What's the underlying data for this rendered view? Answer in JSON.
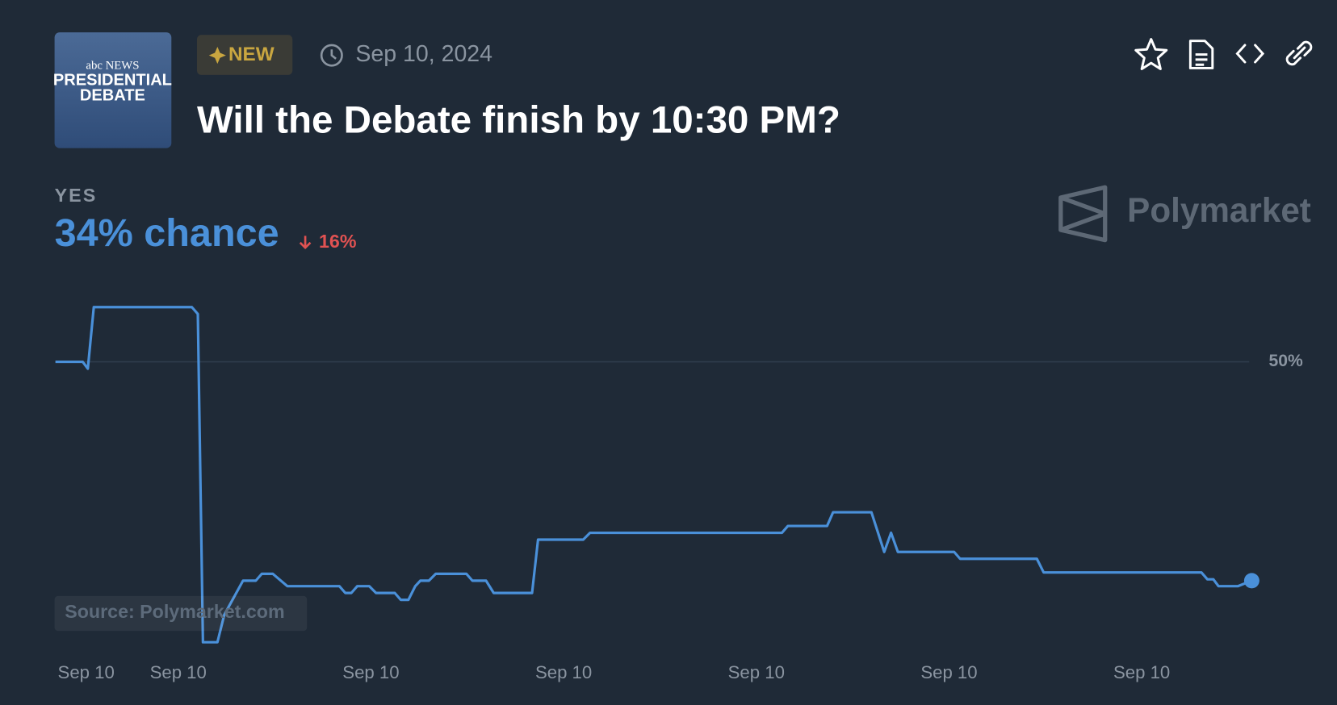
{
  "header": {
    "thumbnail": {
      "network": "abc NEWS",
      "line1": "PRESIDENTIAL",
      "line2": "DEBATE"
    },
    "badge": "NEW",
    "date": "Sep 10, 2024",
    "title": "Will the Debate finish by 10:30 PM?",
    "outcome": "YES",
    "chance": "34% chance",
    "change": "16%",
    "brand": "Polymarket"
  },
  "chart_data": {
    "type": "line",
    "color": "#4a90d9",
    "grid": true,
    "source": "Source: Polymarket.com",
    "x": [
      0,
      3.2,
      3.8,
      4.5,
      16,
      16.7,
      17.3,
      19,
      19.8,
      22,
      23.5,
      24.2,
      25.5,
      27.2,
      33.3,
      34,
      34.7,
      35.4,
      36.8,
      37.6,
      39.8,
      40.5,
      41.4,
      42.2,
      42.8,
      43.8,
      44.6,
      48.2,
      48.9,
      50.5,
      51.4,
      55.9,
      56.6,
      61.9,
      62.7,
      85.2,
      85.9,
      90.5,
      91.2,
      95.7,
      97.2,
      98,
      98.8,
      105.4,
      106.1,
      115.1,
      115.9,
      134.4,
      135.1,
      135.8,
      136.4,
      138.7,
      140.3
    ],
    "values": [
      50,
      50,
      49.5,
      54,
      54,
      53.5,
      29.5,
      29.5,
      31.5,
      34,
      34,
      34.5,
      34.5,
      33.6,
      33.6,
      33.1,
      33.1,
      33.6,
      33.6,
      33.1,
      33.1,
      32.6,
      32.6,
      33.6,
      34,
      34,
      34.5,
      34.5,
      34,
      34,
      33.1,
      33.1,
      37,
      37,
      37.5,
      37.5,
      38,
      38,
      39,
      39,
      36.1,
      37.5,
      36.1,
      36.1,
      35.6,
      35.6,
      34.6,
      34.6,
      34.1,
      34.1,
      33.6,
      33.6,
      34
    ],
    "xlim": [
      0,
      140.3
    ],
    "xticks": [
      {
        "value": 3.6,
        "label": "Sep 10"
      },
      {
        "value": 14.4,
        "label": "Sep 10"
      },
      {
        "value": 37,
        "label": "Sep 10"
      },
      {
        "value": 59.6,
        "label": "Sep 10"
      },
      {
        "value": 82.2,
        "label": "Sep 10"
      },
      {
        "value": 104.8,
        "label": "Sep 10"
      },
      {
        "value": 127.4,
        "label": "Sep 10"
      }
    ],
    "ylim": [
      29,
      56
    ],
    "yticks": [
      {
        "value": 50,
        "label": "50%"
      }
    ]
  }
}
